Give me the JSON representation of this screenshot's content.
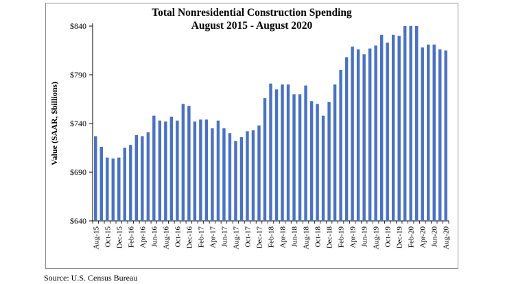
{
  "chart_data": {
    "type": "bar",
    "title": "Total Nonresidential Construction Spending",
    "subtitle": "August 2015 - August 2020",
    "xlabel": "",
    "ylabel": "Value (SAAR, $billions)",
    "ylim": [
      640,
      840
    ],
    "y_ticks": [
      "$640",
      "$690",
      "$740",
      "$790",
      "$840"
    ],
    "y_tick_values": [
      640,
      690,
      740,
      790,
      840
    ],
    "grid": false,
    "legend": "none",
    "bar_color": "#4a72c0",
    "x_tick_labels": [
      "Aug-15",
      "Oct-15",
      "Dec-15",
      "Feb-16",
      "Apr-16",
      "Jun-16",
      "Aug-16",
      "Oct-16",
      "Dec-16",
      "Feb-17",
      "Apr-17",
      "Jun-17",
      "Aug-17",
      "Oct-17",
      "Dec-17",
      "Feb-18",
      "Apr-18",
      "Jun-18",
      "Aug-18",
      "Oct-18",
      "Dec-18",
      "Feb-19",
      "Apr-19",
      "Jun-19",
      "Aug-19",
      "Oct-19",
      "Dec-19",
      "Feb-20",
      "Apr-20",
      "Jun-20",
      "Aug-20"
    ],
    "categories": [
      "Aug-15",
      "Sep-15",
      "Oct-15",
      "Nov-15",
      "Dec-15",
      "Jan-16",
      "Feb-16",
      "Mar-16",
      "Apr-16",
      "May-16",
      "Jun-16",
      "Jul-16",
      "Aug-16",
      "Sep-16",
      "Oct-16",
      "Nov-16",
      "Dec-16",
      "Jan-17",
      "Feb-17",
      "Mar-17",
      "Apr-17",
      "May-17",
      "Jun-17",
      "Jul-17",
      "Aug-17",
      "Sep-17",
      "Oct-17",
      "Nov-17",
      "Dec-17",
      "Jan-18",
      "Feb-18",
      "Mar-18",
      "Apr-18",
      "May-18",
      "Jun-18",
      "Jul-18",
      "Aug-18",
      "Sep-18",
      "Oct-18",
      "Nov-18",
      "Dec-18",
      "Jan-19",
      "Feb-19",
      "Mar-19",
      "Apr-19",
      "May-19",
      "Jun-19",
      "Jul-19",
      "Aug-19",
      "Sep-19",
      "Oct-19",
      "Nov-19",
      "Dec-19",
      "Jan-20",
      "Feb-20",
      "Mar-20",
      "Apr-20",
      "May-20",
      "Jun-20",
      "Jul-20",
      "Aug-20"
    ],
    "values": [
      727,
      716,
      705,
      704,
      705,
      715,
      718,
      728,
      727,
      731,
      748,
      743,
      742,
      747,
      743,
      760,
      758,
      742,
      744,
      744,
      735,
      743,
      735,
      730,
      722,
      726,
      732,
      733,
      738,
      766,
      781,
      775,
      780,
      780,
      770,
      770,
      779,
      763,
      760,
      748,
      762,
      780,
      795,
      808,
      819,
      816,
      811,
      817,
      820,
      831,
      823,
      831,
      830,
      840,
      840,
      840,
      818,
      821,
      821,
      816,
      815
    ]
  },
  "footer": {
    "source": "Source:  U.S. Census Bureau"
  }
}
